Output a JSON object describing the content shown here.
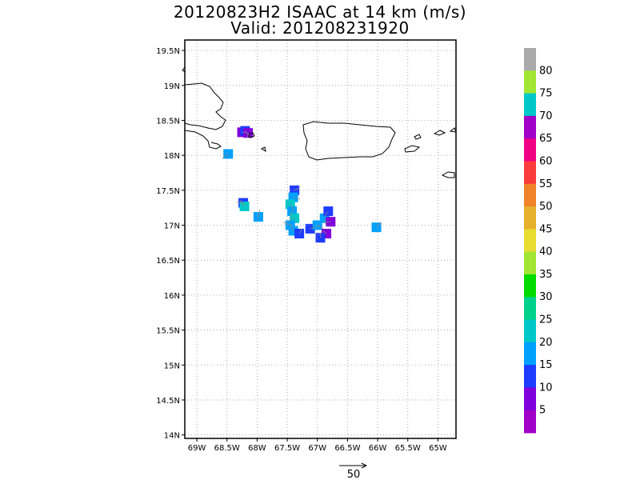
{
  "title_line1": "20120823H2 ISAAC at 14 km (m/s)",
  "title_line2": "Valid: 201208231920",
  "map": {
    "lon_range": [
      -69.2,
      -64.7
    ],
    "lat_range": [
      13.95,
      19.65
    ],
    "lon_ticks": [
      -69,
      -68.5,
      -68,
      -67.5,
      -67,
      -66.5,
      -66,
      -65.5,
      -65
    ],
    "lon_labels": [
      "69W",
      "68.5W",
      "68W",
      "67.5W",
      "67W",
      "66.5W",
      "66W",
      "65.5W",
      "65W"
    ],
    "lat_ticks": [
      19.5,
      19,
      18.5,
      18,
      17.5,
      17,
      16.5,
      16,
      15.5,
      15,
      14.5,
      14
    ],
    "lat_labels": [
      "19.5N",
      "19N",
      "18.5N",
      "18N",
      "17.5N",
      "17N",
      "16.5N",
      "16N",
      "15.5N",
      "15N",
      "14.5N",
      "14N"
    ],
    "grid": true,
    "grid_style": "dotted"
  },
  "colorbar": {
    "labels": [
      "5",
      "10",
      "15",
      "20",
      "25",
      "30",
      "35",
      "40",
      "45",
      "50",
      "55",
      "60",
      "65",
      "70",
      "75",
      "80"
    ],
    "colors": [
      "#a000c8",
      "#7f00dc",
      "#1e3cff",
      "#00a0ff",
      "#00c8c8",
      "#00d28c",
      "#00dc00",
      "#a0e632",
      "#e6dc32",
      "#e6af2d",
      "#f08228",
      "#fa3c3c",
      "#f00082",
      "#a000c8",
      "#00c8c8",
      "#a0e632",
      "#aaaaaa"
    ]
  },
  "wind_cells": [
    {
      "lon": -68.25,
      "lat": 18.33,
      "spd": 5
    },
    {
      "lon": -68.2,
      "lat": 18.35,
      "spd": 10
    },
    {
      "lon": -68.15,
      "lat": 18.32,
      "spd": 8
    },
    {
      "lon": -68.48,
      "lat": 18.02,
      "spd": 18
    },
    {
      "lon": -68.23,
      "lat": 17.32,
      "spd": 14
    },
    {
      "lon": -68.21,
      "lat": 17.27,
      "spd": 20
    },
    {
      "lon": -67.98,
      "lat": 17.12,
      "spd": 18
    },
    {
      "lon": -67.38,
      "lat": 17.5,
      "spd": 14
    },
    {
      "lon": -67.4,
      "lat": 17.4,
      "spd": 16
    },
    {
      "lon": -67.45,
      "lat": 17.3,
      "spd": 20
    },
    {
      "lon": -67.42,
      "lat": 17.2,
      "spd": 15
    },
    {
      "lon": -67.38,
      "lat": 17.1,
      "spd": 22
    },
    {
      "lon": -67.45,
      "lat": 17.0,
      "spd": 18
    },
    {
      "lon": -67.4,
      "lat": 16.92,
      "spd": 15
    },
    {
      "lon": -67.3,
      "lat": 16.88,
      "spd": 12
    },
    {
      "lon": -67.12,
      "lat": 16.95,
      "spd": 14
    },
    {
      "lon": -67.0,
      "lat": 17.0,
      "spd": 16
    },
    {
      "lon": -66.88,
      "lat": 17.1,
      "spd": 15
    },
    {
      "lon": -66.82,
      "lat": 17.2,
      "spd": 13
    },
    {
      "lon": -66.78,
      "lat": 17.05,
      "spd": 8
    },
    {
      "lon": -66.85,
      "lat": 16.88,
      "spd": 6
    },
    {
      "lon": -66.95,
      "lat": 16.82,
      "spd": 10
    },
    {
      "lon": -66.02,
      "lat": 16.97,
      "spd": 15
    }
  ],
  "reference_vector": {
    "label": "50"
  }
}
